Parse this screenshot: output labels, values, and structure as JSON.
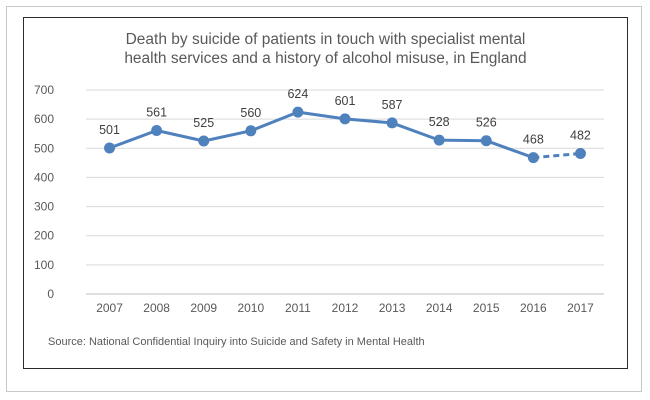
{
  "chart_data": {
    "type": "line",
    "title_lines": [
      "Death by suicide of patients in touch with specialist mental",
      "health services and a history of alcohol misuse, in England"
    ],
    "source": "Source: National Confidential Inquiry into Suicide and Safety in Mental Health",
    "categories": [
      "2007",
      "2008",
      "2009",
      "2010",
      "2011",
      "2012",
      "2013",
      "2014",
      "2015",
      "2016",
      "2017"
    ],
    "series": [
      {
        "values": [
          501,
          561,
          525,
          560,
          624,
          601,
          587,
          528,
          526,
          468,
          482
        ],
        "color": "#4f81bd",
        "dashed_from_index": 9
      }
    ],
    "ylim": [
      0,
      700
    ],
    "yticks": [
      "0",
      "100",
      "200",
      "300",
      "400",
      "500",
      "600",
      "700"
    ],
    "grid": true,
    "legend": "none"
  }
}
